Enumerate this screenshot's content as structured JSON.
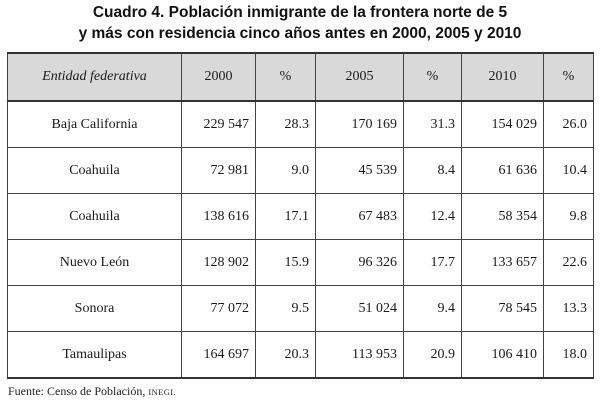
{
  "title": {
    "line1": "Cuadro 4. Población inmigrante de la frontera norte de 5",
    "line2": "y más con residencia cinco años antes en 2000, 2005 y 2010"
  },
  "table": {
    "headers": [
      "Entidad federativa",
      "2000",
      "%",
      "2005",
      "%",
      "2010",
      "%"
    ],
    "rows": [
      [
        "Baja California",
        "229 547",
        "28.3",
        "170 169",
        "31.3",
        "154 029",
        "26.0"
      ],
      [
        "Coahuila",
        "72 981",
        "9.0",
        "45 539",
        "8.4",
        "61 636",
        "10.4"
      ],
      [
        "Coahuila",
        "138 616",
        "17.1",
        "67 483",
        "12.4",
        "58 354",
        "9.8"
      ],
      [
        "Nuevo León",
        "128 902",
        "15.9",
        "96 326",
        "17.7",
        "133 657",
        "22.6"
      ],
      [
        "Sonora",
        "77 072",
        "9.5",
        "51 024",
        "9.4",
        "78 545",
        "13.3"
      ],
      [
        "Tamaulipas",
        "164 697",
        "20.3",
        "113 953",
        "20.9",
        "106 410",
        "18.0"
      ]
    ]
  },
  "source": {
    "prefix": "Fuente: Censo de Población,",
    "org": "INEGI."
  }
}
